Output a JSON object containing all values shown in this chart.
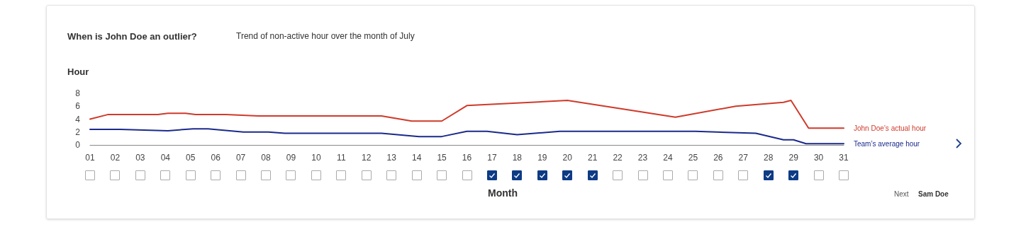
{
  "chart_data": {
    "type": "line",
    "title": "When is John Doe an outlier?",
    "subtitle": "Trend of non-active hour over the month of July",
    "ylabel": "Hour",
    "xlabel": "Month",
    "annotations": [
      "Next",
      "Sam Doe"
    ],
    "xlim": [
      1,
      31
    ],
    "xticks": [
      {
        "value": 1,
        "label": "01"
      },
      {
        "value": 2,
        "label": "02"
      },
      {
        "value": 3,
        "label": "03"
      },
      {
        "value": 4,
        "label": "04"
      },
      {
        "value": 5,
        "label": "05"
      },
      {
        "value": 6,
        "label": "06"
      },
      {
        "value": 7,
        "label": "07"
      },
      {
        "value": 8,
        "label": "08"
      },
      {
        "value": 9,
        "label": "09"
      },
      10,
      11,
      12,
      13,
      14,
      15,
      16,
      17,
      18,
      19,
      20,
      21,
      22,
      23,
      24,
      25,
      26,
      27,
      28,
      29,
      30,
      31
    ],
    "ylim": [
      0,
      8
    ],
    "yticks": [
      0,
      2,
      4,
      6,
      8
    ],
    "grid": false,
    "legend": "right",
    "marker": "none",
    "line_style": "solid",
    "series": [
      {
        "name": "John Doe’s actual hour",
        "color": "#cf3a2a",
        "x": [
          1,
          1.7,
          3.7,
          4.1,
          4.8,
          5.2,
          6.4,
          7.7,
          12.6,
          13.8,
          15,
          16,
          20,
          24.3,
          26.7,
          28.6,
          28.9,
          29.6,
          31
        ],
        "values": [
          4,
          4.7,
          4.7,
          4.9,
          4.9,
          4.7,
          4.7,
          4.5,
          4.5,
          3.7,
          3.7,
          6.1,
          6.9,
          4.3,
          6,
          6.6,
          6.9,
          2.6,
          2.6
        ]
      },
      {
        "name": "Team’s average hour",
        "color": "#1a2a8c",
        "x": [
          1,
          2.2,
          4.1,
          5.1,
          5.7,
          7.1,
          8.1,
          8.75,
          12.6,
          14.1,
          15,
          16,
          16.8,
          18,
          19.7,
          25.1,
          27.5,
          28.6,
          29,
          29.5,
          31
        ],
        "values": [
          2.4,
          2.4,
          2.2,
          2.5,
          2.5,
          2,
          2,
          1.8,
          1.8,
          1.3,
          1.3,
          2.1,
          2.1,
          1.6,
          2.1,
          2.1,
          1.8,
          0.8,
          0.8,
          0.2,
          0.2
        ]
      }
    ]
  }
}
